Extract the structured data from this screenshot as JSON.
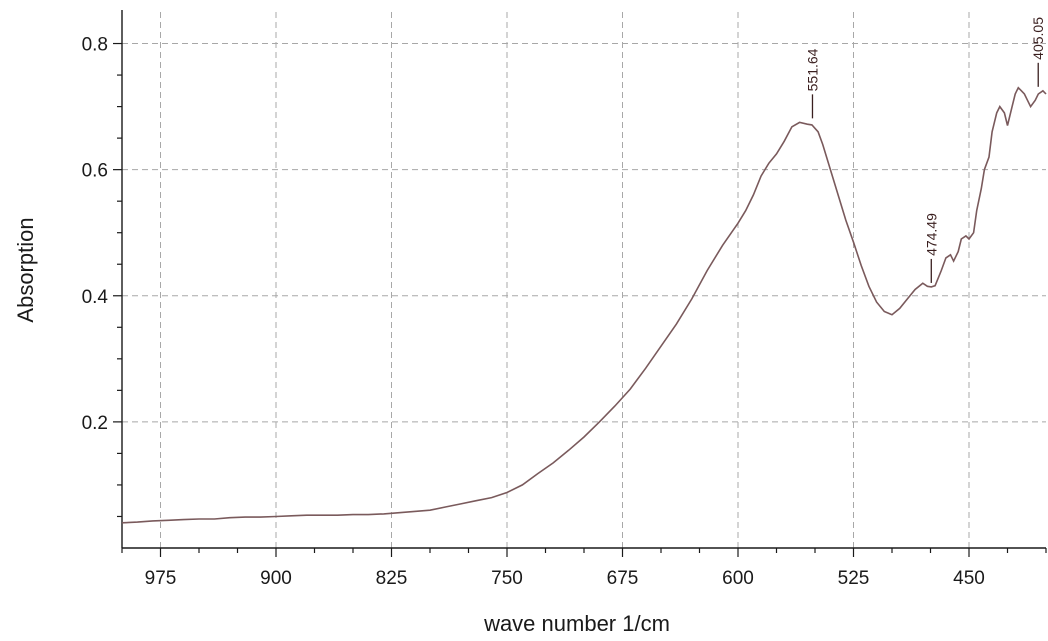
{
  "chart_data": {
    "type": "line",
    "title": "",
    "xlabel": "wave number 1/cm",
    "ylabel": "Absorption",
    "xlim": [
      1000,
      400
    ],
    "ylim": [
      0.0,
      0.85
    ],
    "x_reversed": true,
    "grid": true,
    "xticks": [
      975,
      900,
      825,
      750,
      675,
      600,
      525,
      450
    ],
    "yticks": [
      0.2,
      0.4,
      0.6,
      0.8
    ],
    "xtick_labels": [
      "975",
      "900",
      "825",
      "750",
      "675",
      "600",
      "525",
      "450"
    ],
    "ytick_labels": [
      "0.2",
      "0.4",
      "0.6",
      "0.8"
    ],
    "line_color": "#7a5a5c",
    "series": [
      {
        "x": [
          1000,
          990,
          980,
          970,
          960,
          950,
          940,
          930,
          920,
          910,
          900,
          890,
          880,
          870,
          860,
          850,
          840,
          830,
          820,
          810,
          800,
          790,
          780,
          770,
          760,
          750,
          740,
          730,
          720,
          710,
          700,
          690,
          680,
          670,
          660,
          650,
          640,
          630,
          620,
          610,
          600,
          595,
          590,
          585,
          580,
          575,
          570,
          565,
          560,
          555,
          552,
          548,
          545,
          540,
          535,
          530,
          525,
          520,
          515,
          510,
          505,
          500,
          495,
          490,
          485,
          480,
          477,
          474.5,
          472,
          468,
          465,
          462,
          460,
          457,
          455,
          452,
          450,
          447,
          445,
          442,
          440,
          437,
          435,
          432,
          430,
          427,
          425,
          422,
          420,
          418,
          416,
          414,
          412,
          410,
          407,
          405,
          402,
          400
        ],
        "y": [
          0.04,
          0.041,
          0.043,
          0.044,
          0.045,
          0.046,
          0.046,
          0.048,
          0.049,
          0.049,
          0.05,
          0.051,
          0.052,
          0.052,
          0.052,
          0.053,
          0.053,
          0.054,
          0.056,
          0.058,
          0.06,
          0.065,
          0.07,
          0.075,
          0.08,
          0.088,
          0.1,
          0.118,
          0.135,
          0.155,
          0.176,
          0.2,
          0.225,
          0.252,
          0.285,
          0.32,
          0.355,
          0.395,
          0.44,
          0.48,
          0.515,
          0.535,
          0.56,
          0.59,
          0.61,
          0.625,
          0.645,
          0.668,
          0.675,
          0.672,
          0.671,
          0.66,
          0.64,
          0.6,
          0.56,
          0.52,
          0.485,
          0.448,
          0.415,
          0.39,
          0.375,
          0.37,
          0.38,
          0.395,
          0.41,
          0.42,
          0.415,
          0.414,
          0.416,
          0.44,
          0.46,
          0.465,
          0.455,
          0.47,
          0.49,
          0.495,
          0.49,
          0.5,
          0.535,
          0.57,
          0.6,
          0.62,
          0.66,
          0.69,
          0.7,
          0.69,
          0.67,
          0.7,
          0.72,
          0.73,
          0.725,
          0.72,
          0.71,
          0.7,
          0.71,
          0.72,
          0.725,
          0.72
        ]
      }
    ],
    "annotations": [
      {
        "label": "551.64",
        "x": 551.64,
        "y": 0.675
      },
      {
        "label": "474.49",
        "x": 474.49,
        "y": 0.414
      },
      {
        "label": "405.05",
        "x": 405.05,
        "y": 0.725
      }
    ]
  }
}
